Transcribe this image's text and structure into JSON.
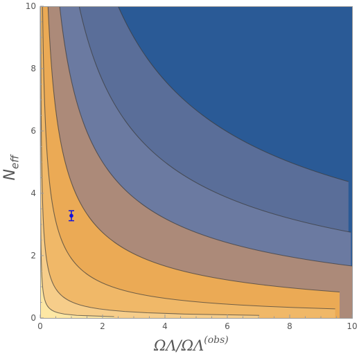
{
  "chart_data": {
    "type": "contour",
    "xlabel": "Ω_Λ / Ω_Λ^(obs)",
    "xlabel_main": "ΩΛ/ΩΛ",
    "xlabel_sup": "(obs)",
    "ylabel": "N_eff",
    "ylabel_main": "N",
    "ylabel_sub": "eff",
    "xlim": [
      0,
      10
    ],
    "ylim": [
      0,
      10
    ],
    "x_ticks": [
      "0",
      "2",
      "4",
      "6",
      "8",
      "10"
    ],
    "y_ticks": [
      "0",
      "2",
      "4",
      "6",
      "8",
      "10"
    ],
    "contour_constants": [
      0.1,
      0.6,
      3,
      10,
      25,
      50,
      100
    ],
    "contour_form": "x*y + 0.3*x*y^2",
    "fill_colors": [
      "#fde7a4",
      "#f6cd8a",
      "#f0b868",
      "#ebaa55",
      "#ac8a79",
      "#6b7aa1",
      "#5a6e99",
      "#2a5a96"
    ],
    "data_point": {
      "x": 1.0,
      "y": 3.28,
      "y_err": 0.16,
      "color": "#1111dd"
    }
  }
}
